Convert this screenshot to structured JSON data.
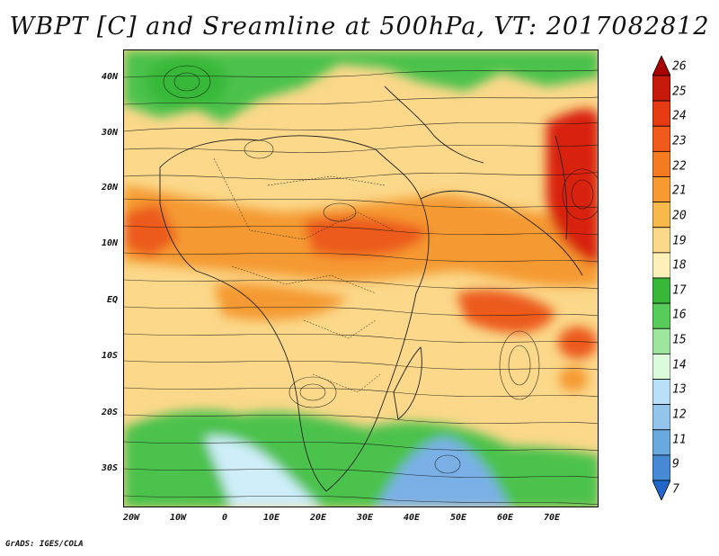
{
  "title": "WBPT [C] and Sreamline at 500hPa, VT: 2017082812",
  "footer": "GrADS: IGES/COLA",
  "lat_labels": [
    "40N",
    "30N",
    "20N",
    "10N",
    "EQ",
    "10S",
    "20S",
    "30S"
  ],
  "lon_labels": [
    "20W",
    "10W",
    "0",
    "10E",
    "20E",
    "30E",
    "40E",
    "50E",
    "60E",
    "70E"
  ],
  "colorbar": {
    "labels": [
      "26",
      "25",
      "24",
      "23",
      "22",
      "21",
      "20",
      "19",
      "18",
      "17",
      "16",
      "15",
      "14",
      "13",
      "12",
      "11",
      "9",
      "7"
    ],
    "colors": [
      "#a80000",
      "#c81a0a",
      "#e63a12",
      "#f05a1a",
      "#f57a20",
      "#f89a30",
      "#f9b84a",
      "#fbd88a",
      "#fdf0b8",
      "#38b838",
      "#58cc58",
      "#9ee69e",
      "#dcfadc",
      "#b8e0f8",
      "#92c4ec",
      "#6aa8e0",
      "#468ad6",
      "#2266cc"
    ]
  },
  "map_colors": {
    "warm_base": "#fbd88a",
    "orange": "#f59a30",
    "red_orange": "#ec5a1a",
    "red": "#d8220e",
    "green": "#4cc24c",
    "light_blue": "#cfeefa",
    "blue": "#7ab0e6"
  }
}
